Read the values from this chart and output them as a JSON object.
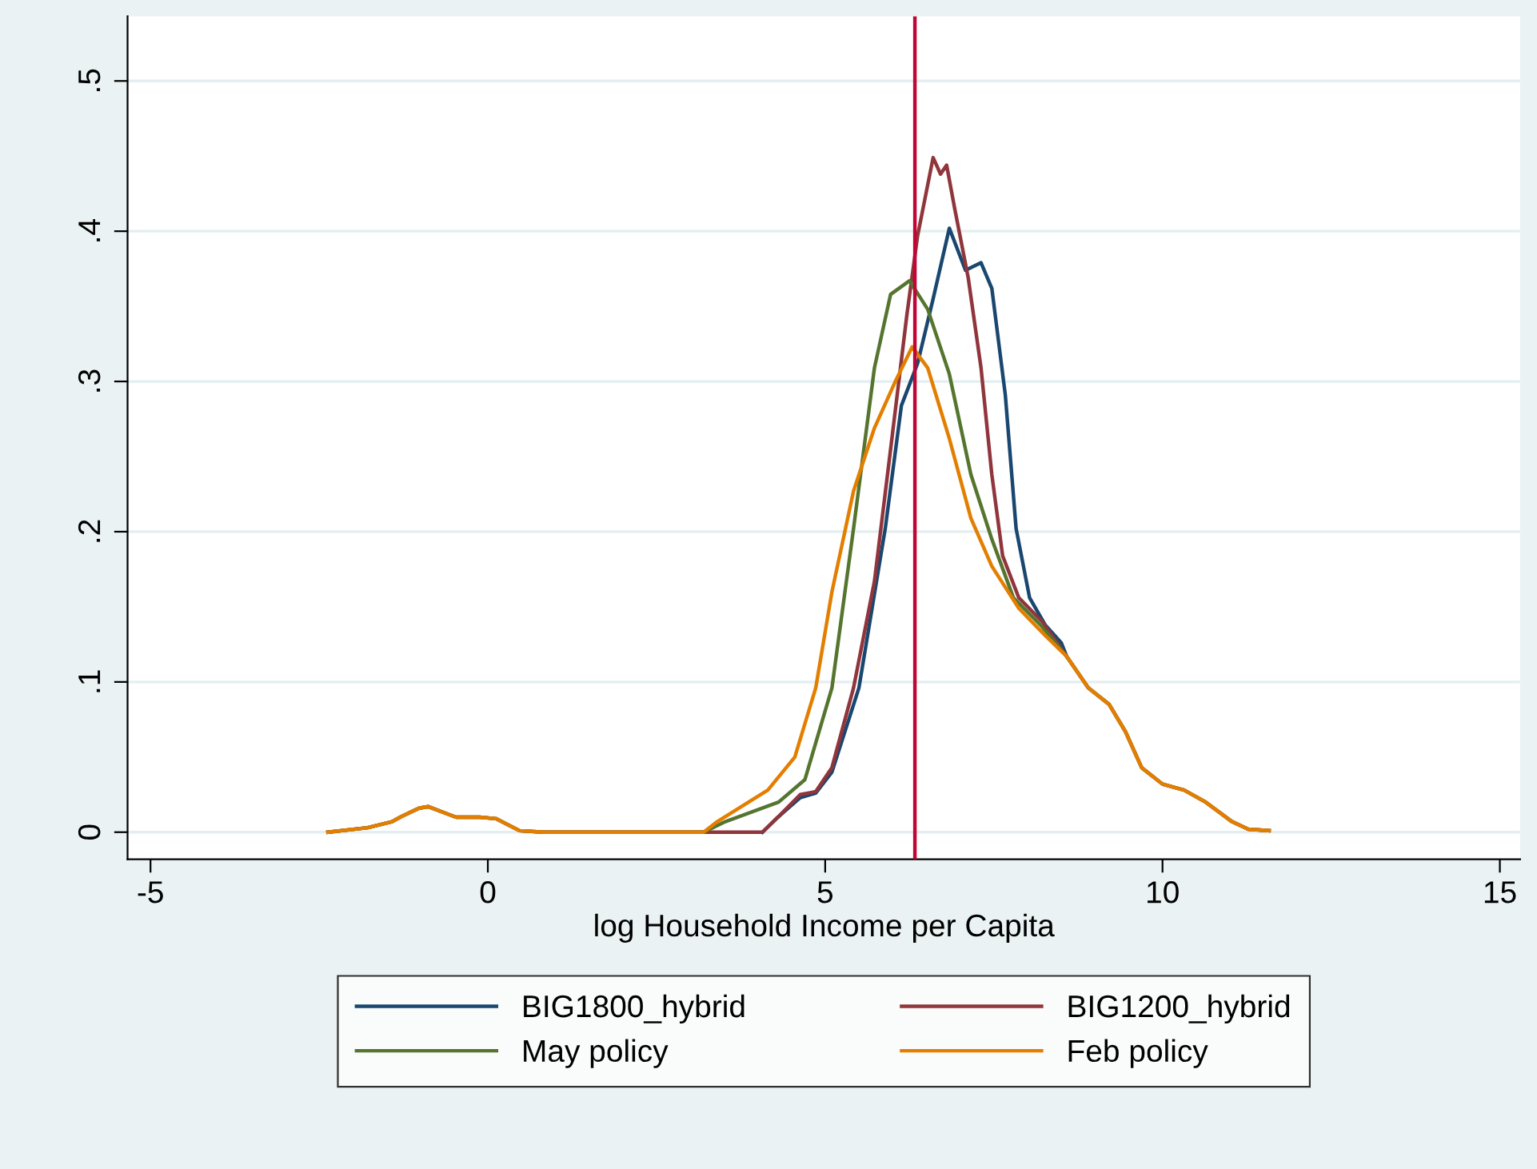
{
  "chart_data": {
    "type": "line",
    "xlabel": "log Household Income per Capita",
    "xlim": [
      -5.34,
      15.3
    ],
    "ylim": [
      -0.018,
      0.543
    ],
    "xticks": [
      -5,
      0,
      5,
      10,
      15
    ],
    "yticks": [
      0,
      {
        "value": 0.1,
        "label": ".1"
      },
      {
        "value": 0.2,
        "label": ".2"
      },
      {
        "value": 0.3,
        "label": ".3"
      },
      {
        "value": 0.4,
        "label": ".4"
      },
      {
        "value": 0.5,
        "label": ".5"
      }
    ],
    "grid": "y",
    "legend": "bottom",
    "marker": "none",
    "line_style": "solid",
    "ref_lines": [
      {
        "axis": "x",
        "value": 6.33,
        "color": "#c10534"
      }
    ],
    "series": [
      {
        "name": "BIG1800_hybrid",
        "color": "#1a476f",
        "x": [
          4.07,
          4.3,
          4.63,
          4.86,
          5.1,
          5.5,
          5.89,
          6.13,
          6.37,
          6.6,
          6.84,
          7.08,
          7.31,
          7.47,
          7.67,
          7.83,
          8.03,
          8.26,
          8.5,
          8.58
        ],
        "values": [
          0,
          0.01,
          0.023,
          0.026,
          0.04,
          0.096,
          0.202,
          0.284,
          0.312,
          0.355,
          0.402,
          0.374,
          0.379,
          0.362,
          0.291,
          0.202,
          0.156,
          0.138,
          0.126,
          0.117
        ]
      },
      {
        "name": "BIG1200_hybrid",
        "color": "#90353b",
        "x": [
          -2.37,
          -1.78,
          -1.42,
          -1.3,
          -1.02,
          -0.88,
          -0.59,
          -0.47,
          -0.12,
          0.12,
          0.47,
          0.83,
          3.2,
          4.07,
          4.3,
          4.63,
          4.86,
          5.1,
          5.42,
          5.73,
          5.97,
          6.21,
          6.37,
          6.6,
          6.71,
          6.8,
          6.92,
          7.12,
          7.31,
          7.47,
          7.63,
          7.87,
          8.22,
          8.58,
          8.9,
          9.21,
          9.45,
          9.69,
          10.0,
          10.32,
          10.64,
          11.03,
          11.27,
          11.58
        ],
        "values": [
          0,
          0.003,
          0.007,
          0.01,
          0.016,
          0.017,
          0.012,
          0.01,
          0.01,
          0.009,
          0.001,
          0,
          0,
          0,
          0.01,
          0.025,
          0.027,
          0.043,
          0.096,
          0.167,
          0.255,
          0.344,
          0.397,
          0.449,
          0.438,
          0.444,
          0.415,
          0.369,
          0.309,
          0.238,
          0.184,
          0.156,
          0.14,
          0.117,
          0.096,
          0.085,
          0.067,
          0.043,
          0.032,
          0.028,
          0.02,
          0.007,
          0.002,
          0.001
        ]
      },
      {
        "name": "May policy",
        "color": "#55752f",
        "x": [
          -2.37,
          -1.78,
          -1.42,
          -1.3,
          -1.02,
          -0.88,
          -0.59,
          -0.47,
          -0.12,
          0.12,
          0.47,
          0.83,
          3.2,
          3.52,
          4.31,
          4.7,
          5.1,
          5.42,
          5.73,
          5.97,
          6.25,
          6.52,
          6.84,
          7.16,
          7.47,
          7.79,
          8.19,
          8.58,
          8.9,
          9.21,
          9.45,
          9.69,
          10.0,
          10.32,
          10.64,
          11.03,
          11.27,
          11.58
        ],
        "values": [
          0,
          0.003,
          0.007,
          0.01,
          0.016,
          0.017,
          0.012,
          0.01,
          0.01,
          0.009,
          0.001,
          0,
          0,
          0.007,
          0.02,
          0.035,
          0.096,
          0.202,
          0.309,
          0.358,
          0.367,
          0.348,
          0.305,
          0.238,
          0.195,
          0.156,
          0.138,
          0.117,
          0.096,
          0.085,
          0.067,
          0.043,
          0.032,
          0.028,
          0.02,
          0.007,
          0.002,
          0.001
        ]
      },
      {
        "name": "Feb policy",
        "color": "#e37e00",
        "x": [
          -2.37,
          -1.78,
          -1.42,
          -1.3,
          -1.02,
          -0.88,
          -0.59,
          -0.47,
          -0.12,
          0.12,
          0.47,
          0.83,
          3.2,
          3.4,
          4.15,
          4.55,
          4.86,
          5.1,
          5.42,
          5.73,
          6.05,
          6.29,
          6.52,
          6.84,
          7.16,
          7.47,
          7.87,
          8.26,
          8.58,
          8.9,
          9.21,
          9.45,
          9.69,
          10.0,
          10.32,
          10.64,
          11.03,
          11.27,
          11.58
        ],
        "values": [
          0,
          0.003,
          0.007,
          0.01,
          0.016,
          0.017,
          0.012,
          0.01,
          0.01,
          0.009,
          0.001,
          0,
          0,
          0.007,
          0.028,
          0.05,
          0.096,
          0.16,
          0.227,
          0.269,
          0.301,
          0.323,
          0.309,
          0.262,
          0.209,
          0.177,
          0.149,
          0.131,
          0.117,
          0.096,
          0.085,
          0.067,
          0.043,
          0.032,
          0.028,
          0.02,
          0.007,
          0.002,
          0.001
        ]
      }
    ]
  }
}
